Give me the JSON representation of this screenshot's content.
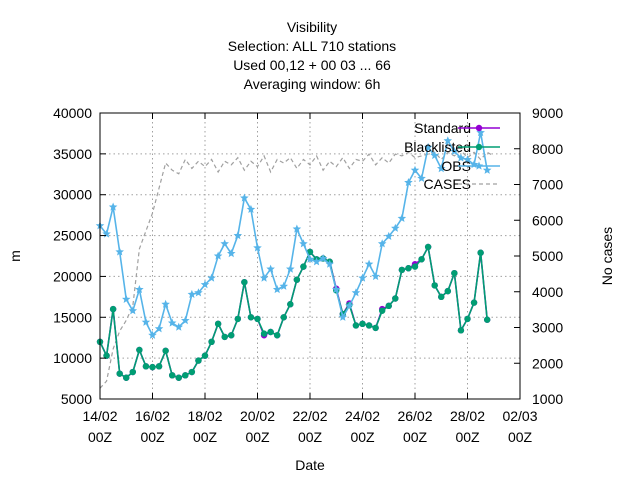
{
  "chart_data": {
    "type": "line",
    "title": [
      "Visibility",
      "Selection: ALL     710 stations",
      "Used  00,12  + 00 03 ... 66",
      "Averaging window:  6h"
    ],
    "xlabel": "Date",
    "ylabel": "m",
    "y2label": "No cases",
    "xlim": [
      "2025-02-14T00:00",
      "2025-03-02T00:00"
    ],
    "ylim": [
      5000,
      40000
    ],
    "y2lim": [
      1000,
      9000
    ],
    "xticks": [
      {
        "label": [
          "14/02",
          "00Z"
        ]
      },
      {
        "label": [
          "16/02",
          "00Z"
        ]
      },
      {
        "label": [
          "18/02",
          "00Z"
        ]
      },
      {
        "label": [
          "20/02",
          "00Z"
        ]
      },
      {
        "label": [
          "22/02",
          "00Z"
        ]
      },
      {
        "label": [
          "24/02",
          "00Z"
        ]
      },
      {
        "label": [
          "26/02",
          "00Z"
        ]
      },
      {
        "label": [
          "28/02",
          "00Z"
        ]
      },
      {
        "label": [
          "02/03",
          "00Z"
        ]
      }
    ],
    "yticks": [
      "5000",
      "10000",
      "15000",
      "20000",
      "25000",
      "30000",
      "35000",
      "40000"
    ],
    "y2ticks": [
      "1000",
      "2000",
      "3000",
      "4000",
      "5000",
      "6000",
      "7000",
      "8000",
      "9000"
    ],
    "grid": true,
    "legend_position": "top-right",
    "series": [
      {
        "name": "Standard",
        "color": "#9400d3",
        "axis": "y",
        "style": "line-points",
        "x": [
          "2025-02-14T00:00",
          "2025-02-14T06:00",
          "2025-02-14T12:00",
          "2025-02-14T18:00",
          "2025-02-15T00:00",
          "2025-02-15T06:00",
          "2025-02-15T12:00",
          "2025-02-15T18:00",
          "2025-02-16T00:00",
          "2025-02-16T06:00",
          "2025-02-16T12:00",
          "2025-02-16T18:00",
          "2025-02-17T00:00",
          "2025-02-17T06:00",
          "2025-02-17T12:00",
          "2025-02-17T18:00",
          "2025-02-18T00:00",
          "2025-02-18T06:00",
          "2025-02-18T12:00",
          "2025-02-18T18:00",
          "2025-02-19T00:00",
          "2025-02-19T06:00",
          "2025-02-19T12:00",
          "2025-02-19T18:00",
          "2025-02-20T00:00",
          "2025-02-20T06:00",
          "2025-02-20T12:00",
          "2025-02-20T18:00",
          "2025-02-21T00:00",
          "2025-02-21T06:00",
          "2025-02-21T12:00",
          "2025-02-21T18:00",
          "2025-02-22T00:00",
          "2025-02-22T06:00",
          "2025-02-22T12:00",
          "2025-02-22T18:00",
          "2025-02-23T00:00",
          "2025-02-23T06:00",
          "2025-02-23T12:00",
          "2025-02-23T18:00",
          "2025-02-24T00:00",
          "2025-02-24T06:00",
          "2025-02-24T12:00",
          "2025-02-24T18:00",
          "2025-02-25T00:00",
          "2025-02-25T06:00",
          "2025-02-25T12:00",
          "2025-02-25T18:00",
          "2025-02-26T00:00",
          "2025-02-26T06:00",
          "2025-02-26T12:00",
          "2025-02-26T18:00",
          "2025-02-27T00:00",
          "2025-02-27T06:00",
          "2025-02-27T12:00",
          "2025-02-27T18:00",
          "2025-02-28T00:00",
          "2025-02-28T06:00",
          "2025-02-28T12:00",
          "2025-02-28T18:00",
          "2025-03-01T00:00"
        ],
        "values": [
          12000,
          10300,
          16000,
          8100,
          7600,
          8300,
          11000,
          9000,
          8900,
          9000,
          10900,
          7900,
          7600,
          7900,
          8300,
          9700,
          10300,
          12000,
          14200,
          12600,
          12800,
          14800,
          19300,
          15000,
          14800,
          12800,
          13200,
          12800,
          15000,
          16600,
          19600,
          21200,
          23000,
          22100,
          22200,
          21800,
          18500,
          15400,
          16700,
          14000,
          14200,
          14000,
          13700,
          16000,
          16400,
          17300,
          20800,
          21000,
          21500,
          22100,
          23600,
          18900,
          17500,
          18200,
          20400,
          13400,
          14800,
          16800,
          22900,
          14700,
          null
        ]
      },
      {
        "name": "Blacklisted",
        "color": "#009e73",
        "axis": "y",
        "style": "line-points",
        "x": [
          "2025-02-14T00:00",
          "2025-02-14T06:00",
          "2025-02-14T12:00",
          "2025-02-14T18:00",
          "2025-02-15T00:00",
          "2025-02-15T06:00",
          "2025-02-15T12:00",
          "2025-02-15T18:00",
          "2025-02-16T00:00",
          "2025-02-16T06:00",
          "2025-02-16T12:00",
          "2025-02-16T18:00",
          "2025-02-17T00:00",
          "2025-02-17T06:00",
          "2025-02-17T12:00",
          "2025-02-17T18:00",
          "2025-02-18T00:00",
          "2025-02-18T06:00",
          "2025-02-18T12:00",
          "2025-02-18T18:00",
          "2025-02-19T00:00",
          "2025-02-19T06:00",
          "2025-02-19T12:00",
          "2025-02-19T18:00",
          "2025-02-20T00:00",
          "2025-02-20T06:00",
          "2025-02-20T12:00",
          "2025-02-20T18:00",
          "2025-02-21T00:00",
          "2025-02-21T06:00",
          "2025-02-21T12:00",
          "2025-02-21T18:00",
          "2025-02-22T00:00",
          "2025-02-22T06:00",
          "2025-02-22T12:00",
          "2025-02-22T18:00",
          "2025-02-23T00:00",
          "2025-02-23T06:00",
          "2025-02-23T12:00",
          "2025-02-23T18:00",
          "2025-02-24T00:00",
          "2025-02-24T06:00",
          "2025-02-24T12:00",
          "2025-02-24T18:00",
          "2025-02-25T00:00",
          "2025-02-25T06:00",
          "2025-02-25T12:00",
          "2025-02-25T18:00",
          "2025-02-26T00:00",
          "2025-02-26T06:00",
          "2025-02-26T12:00",
          "2025-02-26T18:00",
          "2025-02-27T00:00",
          "2025-02-27T06:00",
          "2025-02-27T12:00",
          "2025-02-27T18:00",
          "2025-02-28T00:00",
          "2025-02-28T06:00",
          "2025-02-28T12:00",
          "2025-02-28T18:00",
          "2025-03-01T00:00"
        ],
        "values": [
          12000,
          10300,
          16000,
          8100,
          7600,
          8300,
          11000,
          9000,
          8900,
          9000,
          10900,
          7900,
          7600,
          7900,
          8300,
          9700,
          10300,
          12000,
          14200,
          12600,
          12800,
          14800,
          19300,
          15000,
          14800,
          13000,
          13200,
          12800,
          15000,
          16600,
          19600,
          21200,
          23000,
          22100,
          22200,
          21800,
          18300,
          15400,
          16500,
          14000,
          14200,
          14000,
          13700,
          15800,
          16400,
          17300,
          20800,
          21000,
          21200,
          22100,
          23600,
          18900,
          17500,
          18200,
          20400,
          13400,
          14800,
          16800,
          22900,
          14700,
          null
        ]
      },
      {
        "name": "OBS",
        "color": "#56b4e9",
        "axis": "y",
        "style": "line-points",
        "x": [
          "2025-02-14T00:00",
          "2025-02-14T06:00",
          "2025-02-14T12:00",
          "2025-02-14T18:00",
          "2025-02-15T00:00",
          "2025-02-15T06:00",
          "2025-02-15T12:00",
          "2025-02-15T18:00",
          "2025-02-16T00:00",
          "2025-02-16T06:00",
          "2025-02-16T12:00",
          "2025-02-16T18:00",
          "2025-02-17T00:00",
          "2025-02-17T06:00",
          "2025-02-17T12:00",
          "2025-02-17T18:00",
          "2025-02-18T00:00",
          "2025-02-18T06:00",
          "2025-02-18T12:00",
          "2025-02-18T18:00",
          "2025-02-19T00:00",
          "2025-02-19T06:00",
          "2025-02-19T12:00",
          "2025-02-19T18:00",
          "2025-02-20T00:00",
          "2025-02-20T06:00",
          "2025-02-20T12:00",
          "2025-02-20T18:00",
          "2025-02-21T00:00",
          "2025-02-21T06:00",
          "2025-02-21T12:00",
          "2025-02-21T18:00",
          "2025-02-22T00:00",
          "2025-02-22T06:00",
          "2025-02-22T12:00",
          "2025-02-22T18:00",
          "2025-02-23T00:00",
          "2025-02-23T06:00",
          "2025-02-23T12:00",
          "2025-02-23T18:00",
          "2025-02-24T00:00",
          "2025-02-24T06:00",
          "2025-02-24T12:00",
          "2025-02-24T18:00",
          "2025-02-25T00:00",
          "2025-02-25T06:00",
          "2025-02-25T12:00",
          "2025-02-25T18:00",
          "2025-02-26T00:00",
          "2025-02-26T06:00",
          "2025-02-26T12:00",
          "2025-02-26T18:00",
          "2025-02-27T00:00",
          "2025-02-27T06:00",
          "2025-02-27T12:00",
          "2025-02-27T18:00",
          "2025-02-28T00:00",
          "2025-02-28T06:00",
          "2025-02-28T12:00",
          "2025-02-28T18:00",
          "2025-03-01T00:00"
        ],
        "values": [
          26200,
          25200,
          28500,
          23000,
          17200,
          15800,
          18400,
          14400,
          12800,
          13600,
          16600,
          14300,
          13800,
          14600,
          17800,
          18000,
          19000,
          19800,
          22500,
          24000,
          22800,
          25000,
          29600,
          28200,
          23500,
          19800,
          20900,
          18400,
          18800,
          20900,
          25800,
          24000,
          22100,
          21800,
          22200,
          21500,
          18400,
          15000,
          16400,
          18000,
          19800,
          21500,
          20000,
          24000,
          24900,
          25900,
          27100,
          31500,
          33000,
          32000,
          35800,
          34800,
          33200,
          36600,
          35300,
          34500,
          34300,
          33700,
          37600,
          33000,
          null
        ]
      },
      {
        "name": "CASES",
        "color": "#a0a0a0",
        "axis": "y2",
        "style": "dashed",
        "x": [
          "2025-02-14T00:00",
          "2025-02-14T06:00",
          "2025-02-14T12:00",
          "2025-02-14T18:00",
          "2025-02-15T00:00",
          "2025-02-15T06:00",
          "2025-02-15T12:00",
          "2025-02-15T18:00",
          "2025-02-16T00:00",
          "2025-02-16T06:00",
          "2025-02-16T12:00",
          "2025-02-16T18:00",
          "2025-02-17T00:00",
          "2025-02-17T06:00",
          "2025-02-17T12:00",
          "2025-02-17T18:00",
          "2025-02-18T00:00",
          "2025-02-18T06:00",
          "2025-02-18T12:00",
          "2025-02-18T18:00",
          "2025-02-19T00:00",
          "2025-02-19T06:00",
          "2025-02-19T12:00",
          "2025-02-19T18:00",
          "2025-02-20T00:00",
          "2025-02-20T06:00",
          "2025-02-20T12:00",
          "2025-02-20T18:00",
          "2025-02-21T00:00",
          "2025-02-21T06:00",
          "2025-02-21T12:00",
          "2025-02-21T18:00",
          "2025-02-22T00:00",
          "2025-02-22T06:00",
          "2025-02-22T12:00",
          "2025-02-22T18:00",
          "2025-02-23T00:00",
          "2025-02-23T06:00",
          "2025-02-23T12:00",
          "2025-02-23T18:00",
          "2025-02-24T00:00",
          "2025-02-24T06:00",
          "2025-02-24T12:00",
          "2025-02-24T18:00",
          "2025-02-25T00:00",
          "2025-02-25T06:00",
          "2025-02-25T12:00",
          "2025-02-25T18:00",
          "2025-02-26T00:00",
          "2025-02-26T06:00",
          "2025-02-26T12:00",
          "2025-02-26T18:00",
          "2025-02-27T00:00",
          "2025-02-27T06:00",
          "2025-02-27T12:00",
          "2025-02-27T18:00",
          "2025-02-28T00:00",
          "2025-02-28T06:00",
          "2025-02-28T12:00",
          "2025-02-28T18:00",
          "2025-03-01T00:00"
        ],
        "values": [
          1300,
          1500,
          2400,
          2900,
          3200,
          3600,
          5200,
          5700,
          6200,
          6900,
          7600,
          7400,
          7300,
          7700,
          7450,
          7650,
          7500,
          7700,
          7350,
          7650,
          7550,
          7750,
          7400,
          7650,
          7500,
          7800,
          7350,
          7700,
          7600,
          7750,
          7450,
          7700,
          7550,
          7800,
          7400,
          7650,
          7500,
          7750,
          7450,
          7700,
          7650,
          7850,
          7550,
          7750,
          7600,
          7850,
          7800,
          7900,
          7750,
          7800,
          7850,
          7900,
          7700,
          7900,
          7800,
          7950,
          7750,
          7900,
          7700,
          7900,
          7800
        ]
      }
    ]
  }
}
